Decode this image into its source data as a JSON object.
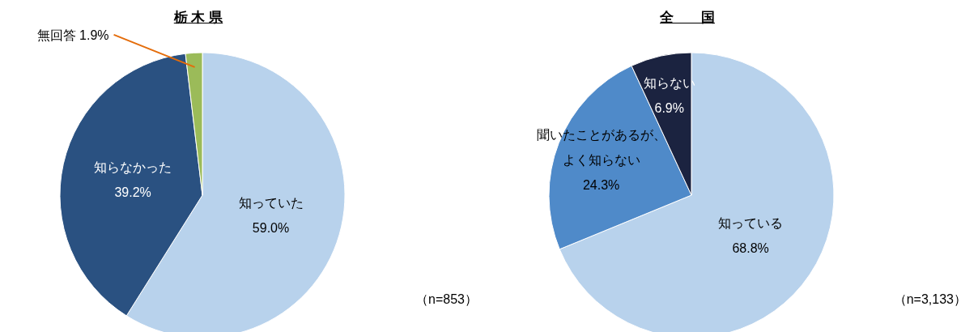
{
  "chart_data": [
    {
      "type": "pie",
      "title": "栃 木 県",
      "categories": [
        "知っていた",
        "知らなかった",
        "無回答"
      ],
      "values": [
        59.0,
        39.2,
        1.9
      ],
      "colors": [
        "#b8d2ec",
        "#2a5181",
        "#9bbb59"
      ],
      "value_labels": [
        "59.0%",
        "39.2%",
        "1.9%"
      ],
      "annotations": [
        "（n=853）"
      ]
    },
    {
      "type": "pie",
      "title": "全　　国",
      "categories": [
        "知っている",
        "聞いたことがあるが、よく知らない",
        "知らない"
      ],
      "values": [
        68.8,
        24.3,
        6.9
      ],
      "colors": [
        "#b8d2ec",
        "#4f8ac9",
        "#1b2340"
      ],
      "value_labels": [
        "68.8%",
        "24.3%",
        "6.9%"
      ],
      "annotations": [
        "（n=3,133）"
      ]
    }
  ]
}
